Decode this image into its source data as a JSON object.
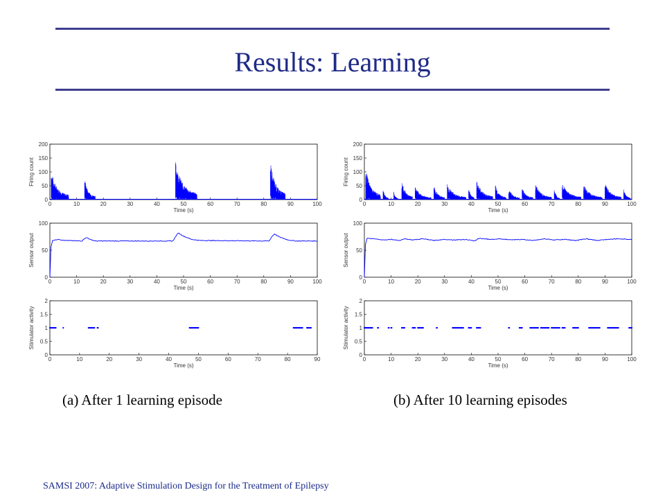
{
  "slide": {
    "title": "Results: Learning",
    "caption_a": "(a)  After 1 learning episode",
    "caption_b": "(b) After 10 learning episodes",
    "footer": "SAMSI 2007: Adaptive Stimulation Design for the Treatment  of Epilepsy"
  },
  "colors": {
    "title": "#1f2a86",
    "rule": "#3d3d8f",
    "series": "#0000ff",
    "footer": "#1a2a8a"
  },
  "chart_data": [
    {
      "id": "a-firing",
      "type": "line",
      "xlabel": "Time (s)",
      "ylabel": "Firing count",
      "xlim": [
        0,
        100
      ],
      "ylim": [
        0,
        200
      ],
      "xticks": [
        0,
        10,
        20,
        30,
        40,
        50,
        60,
        70,
        80,
        90,
        100
      ],
      "yticks": [
        0,
        50,
        100,
        150,
        200
      ],
      "series": [
        {
          "style": "spiky-decay",
          "bursts": [
            {
              "start": 0.5,
              "end": 7,
              "peak": 110
            },
            {
              "start": 13,
              "end": 17,
              "peak": 80
            },
            {
              "start": 47,
              "end": 55,
              "peak": 145
            },
            {
              "start": 82.5,
              "end": 88,
              "peak": 145
            }
          ]
        }
      ]
    },
    {
      "id": "a-sensor",
      "type": "line",
      "xlabel": "Time (s)",
      "ylabel": "Sensor output",
      "xlim": [
        0,
        100
      ],
      "ylim": [
        0,
        100
      ],
      "xticks": [
        0,
        10,
        20,
        30,
        40,
        50,
        60,
        70,
        80,
        90,
        100
      ],
      "yticks": [
        0,
        50,
        100
      ],
      "series": [
        {
          "style": "line",
          "points": [
            [
              0,
              0
            ],
            [
              0.4,
              55
            ],
            [
              1,
              68
            ],
            [
              3,
              70
            ],
            [
              6,
              68
            ],
            [
              12,
              67
            ],
            [
              13,
              72
            ],
            [
              14,
              73
            ],
            [
              15,
              70
            ],
            [
              17,
              67
            ],
            [
              30,
              67
            ],
            [
              46,
              67
            ],
            [
              47,
              75
            ],
            [
              48,
              82
            ],
            [
              50,
              76
            ],
            [
              53,
              70
            ],
            [
              56,
              68
            ],
            [
              82,
              67
            ],
            [
              83,
              75
            ],
            [
              84,
              80
            ],
            [
              86,
              74
            ],
            [
              89,
              69
            ],
            [
              92,
              67
            ],
            [
              100,
              67
            ]
          ]
        }
      ]
    },
    {
      "id": "a-stim",
      "type": "scatter",
      "xlabel": "Time (s)",
      "ylabel": "Stimulator activity",
      "xlim": [
        0,
        90
      ],
      "ylim": [
        0,
        2
      ],
      "xticks": [
        0,
        10,
        20,
        30,
        40,
        50,
        60,
        70,
        80,
        90
      ],
      "yticks": [
        0,
        0.5,
        1,
        1.5,
        2
      ],
      "segments": [
        [
          0,
          2
        ],
        [
          4.5,
          4.6
        ],
        [
          13,
          15
        ],
        [
          16,
          16.2
        ],
        [
          47,
          50
        ],
        [
          82,
          85
        ],
        [
          86.5,
          88
        ]
      ]
    },
    {
      "id": "b-firing",
      "type": "line",
      "xlabel": "Time (s)",
      "ylabel": "Firing count",
      "xlim": [
        0,
        100
      ],
      "ylim": [
        0,
        200
      ],
      "xticks": [
        0,
        10,
        20,
        30,
        40,
        50,
        60,
        70,
        80,
        90,
        100
      ],
      "yticks": [
        0,
        50,
        100,
        150,
        200
      ],
      "series": [
        {
          "style": "spiky-decay",
          "bursts": [
            {
              "start": 0.5,
              "end": 6,
              "peak": 120
            },
            {
              "start": 7,
              "end": 9,
              "peak": 40
            },
            {
              "start": 11,
              "end": 12.5,
              "peak": 35
            },
            {
              "start": 14,
              "end": 18,
              "peak": 70
            },
            {
              "start": 19,
              "end": 25,
              "peak": 50
            },
            {
              "start": 26,
              "end": 30,
              "peak": 55
            },
            {
              "start": 31,
              "end": 38,
              "peak": 60
            },
            {
              "start": 39,
              "end": 41,
              "peak": 50
            },
            {
              "start": 42,
              "end": 48,
              "peak": 75
            },
            {
              "start": 49,
              "end": 53,
              "peak": 55
            },
            {
              "start": 54,
              "end": 58,
              "peak": 45
            },
            {
              "start": 59,
              "end": 63,
              "peak": 50
            },
            {
              "start": 64,
              "end": 70,
              "peak": 60
            },
            {
              "start": 71,
              "end": 73,
              "peak": 45
            },
            {
              "start": 74,
              "end": 81,
              "peak": 65
            },
            {
              "start": 82,
              "end": 89,
              "peak": 60
            },
            {
              "start": 90,
              "end": 96,
              "peak": 65
            },
            {
              "start": 97,
              "end": 99.5,
              "peak": 40
            }
          ]
        }
      ]
    },
    {
      "id": "b-sensor",
      "type": "line",
      "xlabel": "Time (s)",
      "ylabel": "Sensor output",
      "xlim": [
        0,
        100
      ],
      "ylim": [
        0,
        100
      ],
      "xticks": [
        0,
        10,
        20,
        30,
        40,
        50,
        60,
        70,
        80,
        90,
        100
      ],
      "yticks": [
        0,
        50,
        100
      ],
      "series": [
        {
          "style": "line",
          "points": [
            [
              0,
              0
            ],
            [
              0.4,
              60
            ],
            [
              1,
              72
            ],
            [
              4,
              71
            ],
            [
              7,
              69
            ],
            [
              10,
              70
            ],
            [
              13,
              68
            ],
            [
              15,
              71
            ],
            [
              18,
              69
            ],
            [
              22,
              71
            ],
            [
              26,
              68
            ],
            [
              30,
              70
            ],
            [
              34,
              69
            ],
            [
              38,
              70
            ],
            [
              41,
              67
            ],
            [
              43,
              72
            ],
            [
              47,
              70
            ],
            [
              51,
              71
            ],
            [
              55,
              69
            ],
            [
              59,
              70
            ],
            [
              63,
              68
            ],
            [
              67,
              71
            ],
            [
              71,
              69
            ],
            [
              75,
              70
            ],
            [
              79,
              68
            ],
            [
              83,
              71
            ],
            [
              87,
              68
            ],
            [
              91,
              70
            ],
            [
              95,
              71
            ],
            [
              100,
              70
            ]
          ]
        }
      ]
    },
    {
      "id": "b-stim",
      "type": "scatter",
      "xlabel": "Time (s)",
      "ylabel": "Stimulator activity",
      "xlim": [
        0,
        100
      ],
      "ylim": [
        0,
        2
      ],
      "xticks": [
        0,
        10,
        20,
        30,
        40,
        50,
        60,
        70,
        80,
        90,
        100
      ],
      "yticks": [
        0,
        0.5,
        1,
        1.5,
        2
      ],
      "segments": [
        [
          0,
          3
        ],
        [
          5,
          5.3
        ],
        [
          9,
          9.2
        ],
        [
          10,
          10.2
        ],
        [
          14,
          15
        ],
        [
          18,
          19
        ],
        [
          20,
          22
        ],
        [
          27,
          27.2
        ],
        [
          33,
          37
        ],
        [
          39,
          40
        ],
        [
          42,
          43.5
        ],
        [
          54,
          54.2
        ],
        [
          58,
          59
        ],
        [
          62,
          65
        ],
        [
          66,
          69
        ],
        [
          70,
          73
        ],
        [
          74,
          75
        ],
        [
          78,
          80
        ],
        [
          84,
          88
        ],
        [
          91,
          95
        ],
        [
          99,
          100
        ]
      ]
    }
  ]
}
